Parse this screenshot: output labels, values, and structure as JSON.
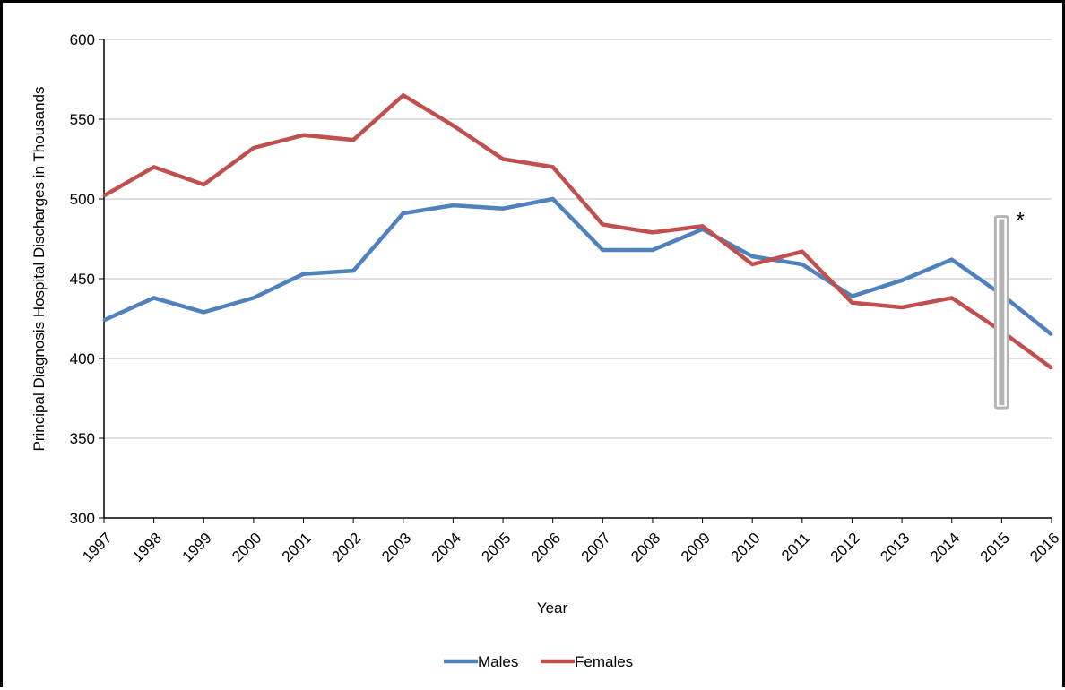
{
  "chart_data": {
    "type": "line",
    "title": "",
    "xlabel": "Year",
    "ylabel": "Principal Diagnosis Hospital Discharges in Thousands",
    "x": [
      "1997",
      "1998",
      "1999",
      "2000",
      "2001",
      "2002",
      "2003",
      "2004",
      "2005",
      "2006",
      "2007",
      "2008",
      "2009",
      "2010",
      "2011",
      "2012",
      "2013",
      "2014",
      "2015",
      "2016"
    ],
    "ylim": [
      300,
      600
    ],
    "yticks": [
      300,
      350,
      400,
      450,
      500,
      550,
      600
    ],
    "grid": true,
    "legend_position": "bottom",
    "series": [
      {
        "name": "Males",
        "color": "#4f81bd",
        "values": [
          424,
          438,
          429,
          438,
          453,
          455,
          491,
          496,
          494,
          500,
          468,
          468,
          481,
          464,
          459,
          439,
          449,
          462,
          440,
          415
        ]
      },
      {
        "name": "Females",
        "color": "#c0504d",
        "values": [
          502,
          520,
          509,
          532,
          540,
          537,
          565,
          546,
          525,
          520,
          484,
          479,
          483,
          459,
          467,
          435,
          432,
          438,
          417,
          394
        ]
      }
    ],
    "annotations": [
      {
        "type": "vertical-bar",
        "x": "2015",
        "y_range": [
          369,
          489
        ],
        "color": "#b3b3b3",
        "label": "*"
      }
    ]
  }
}
